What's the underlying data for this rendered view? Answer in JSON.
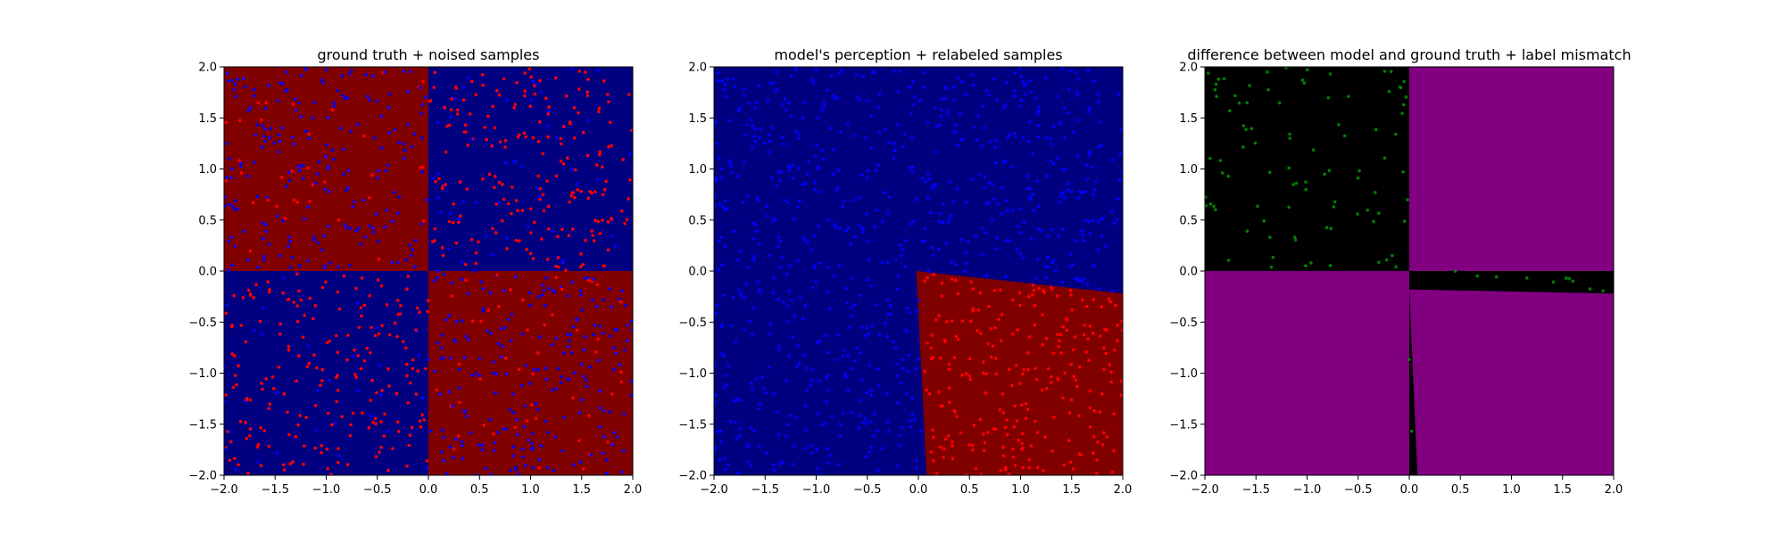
{
  "chart_data": [
    {
      "type": "heatmap",
      "title": "ground truth + noised samples",
      "xlim": [
        -2.0,
        2.0
      ],
      "ylim": [
        -2.0,
        2.0
      ],
      "xticks": [
        "−2.0",
        "−1.5",
        "−1.0",
        "−0.5",
        "0.0",
        "0.5",
        "1.0",
        "1.5",
        "2.0"
      ],
      "yticks": [
        "−2.0",
        "−1.5",
        "−1.0",
        "−0.5",
        "0.0",
        "0.5",
        "1.0",
        "1.5",
        "2.0"
      ],
      "regions": [
        {
          "label": "top-left quadrant",
          "color": "#800000",
          "polygon": [
            [
              -2,
              0
            ],
            [
              0,
              0
            ],
            [
              0,
              2
            ],
            [
              -2,
              2
            ]
          ]
        },
        {
          "label": "top-right quadrant",
          "color": "#000080",
          "polygon": [
            [
              0,
              0
            ],
            [
              2,
              0
            ],
            [
              2,
              2
            ],
            [
              0,
              2
            ]
          ]
        },
        {
          "label": "bottom-left quadrant",
          "color": "#000080",
          "polygon": [
            [
              -2,
              -2
            ],
            [
              0,
              -2
            ],
            [
              0,
              0
            ],
            [
              -2,
              0
            ]
          ]
        },
        {
          "label": "bottom-right quadrant",
          "color": "#800000",
          "polygon": [
            [
              0,
              -2
            ],
            [
              2,
              -2
            ],
            [
              2,
              0
            ],
            [
              0,
              0
            ]
          ]
        }
      ],
      "samples": {
        "rule": "xor_noised",
        "count": 1000,
        "colors": {
          "red": "#ff0000",
          "blue": "#0000ff"
        },
        "marker_size": 2
      }
    },
    {
      "type": "heatmap",
      "title": "model's perception + relabeled samples",
      "xlim": [
        -2.0,
        2.0
      ],
      "ylim": [
        -2.0,
        2.0
      ],
      "xticks": [
        "−2.0",
        "−1.5",
        "−1.0",
        "−0.5",
        "0.0",
        "0.5",
        "1.0",
        "1.5",
        "2.0"
      ],
      "yticks": [
        "−2.0",
        "−1.5",
        "−1.0",
        "−0.5",
        "0.0",
        "0.5",
        "1.0",
        "1.5",
        "2.0"
      ],
      "regions": [
        {
          "label": "background",
          "color": "#000080",
          "polygon": [
            [
              -2,
              -2
            ],
            [
              2,
              -2
            ],
            [
              2,
              2
            ],
            [
              -2,
              2
            ]
          ]
        },
        {
          "label": "predicted red region",
          "color": "#800000",
          "polygon": [
            [
              -0.02,
              0.0
            ],
            [
              2.0,
              -0.22
            ],
            [
              2.0,
              -2.0
            ],
            [
              0.08,
              -2.0
            ]
          ]
        }
      ],
      "samples": {
        "rule": "model_relabeled",
        "count": 1000,
        "colors": {
          "red": "#ff0000",
          "blue": "#0000ff"
        },
        "marker_size": 2
      }
    },
    {
      "type": "heatmap",
      "title": "difference between model and ground truth + label mismatch",
      "xlim": [
        -2.0,
        2.0
      ],
      "ylim": [
        -2.0,
        2.0
      ],
      "xticks": [
        "−2.0",
        "−1.5",
        "−1.0",
        "−0.5",
        "0.0",
        "0.5",
        "1.0",
        "1.5",
        "2.0"
      ],
      "yticks": [
        "−2.0",
        "−1.5",
        "−1.0",
        "−0.5",
        "0.0",
        "0.5",
        "1.0",
        "1.5",
        "2.0"
      ],
      "regions": [
        {
          "label": "background",
          "color": "#000000",
          "polygon": [
            [
              -2,
              -2
            ],
            [
              2,
              -2
            ],
            [
              2,
              2
            ],
            [
              -2,
              2
            ]
          ]
        },
        {
          "label": "disagreement top-right",
          "color": "#800080",
          "polygon": [
            [
              0,
              0
            ],
            [
              2,
              0
            ],
            [
              2,
              2
            ],
            [
              0,
              2
            ]
          ]
        },
        {
          "label": "disagreement bottom-left",
          "color": "#800080",
          "polygon": [
            [
              -2,
              -2
            ],
            [
              0,
              -2
            ],
            [
              0,
              0
            ],
            [
              -2,
              0
            ]
          ]
        },
        {
          "label": "disagreement bottom-right",
          "color": "#800080",
          "polygon": [
            [
              0.0,
              -0.18
            ],
            [
              2.0,
              -0.22
            ],
            [
              2.0,
              -2.0
            ],
            [
              0.08,
              -2.0
            ]
          ]
        }
      ],
      "samples": {
        "rule": "mismatch",
        "count": 1000,
        "colors": {
          "green": "#008000"
        },
        "marker_size": 2
      }
    }
  ]
}
